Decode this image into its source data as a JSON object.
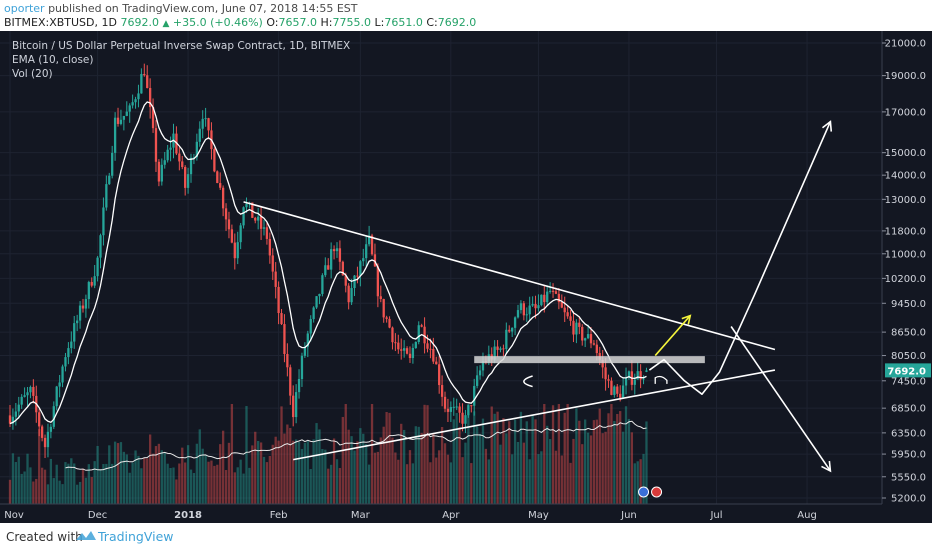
{
  "header": {
    "username": "oporter",
    "published_text": " published on TradingView.com, June 07, 2018 14:55 EST",
    "symbol": "BITMEX:XBTUSD, 1D",
    "last": "7692.0",
    "change": "+35.0 (+0.46%)",
    "o_label": "O:",
    "o": "7657.0",
    "h_label": "H:",
    "h": "7755.0",
    "l_label": "L:",
    "l": "7651.0",
    "c_label": "C:",
    "c": "7692.0"
  },
  "legend": {
    "title": "Bitcoin / US Dollar Perpetual Inverse Swap Contract, 1D, BITMEX",
    "ema": "EMA (10, close)",
    "vol": "Vol (20)"
  },
  "footer": {
    "created_with": "Created with",
    "brand": "TradingView"
  },
  "colors": {
    "bg": "#131722",
    "up": "#26a69a",
    "down": "#ef5350",
    "ema": "#ffffff",
    "annotation": "#ffffff",
    "arrow_yellow": "#f5f53c",
    "price_tag": "#26a69a",
    "band": "#d6d6d6"
  },
  "chart_data": {
    "type": "candlestick",
    "y_scale": "log",
    "price_axis_ticks": [
      "21000.0",
      "19000.0",
      "17000.0",
      "15000.0",
      "14000.0",
      "13000.0",
      "11800.0",
      "11000.0",
      "10200.0",
      "9450.0",
      "8650.0",
      "8050.0",
      "7450.0",
      "6850.0",
      "6350.0",
      "5950.0",
      "5550.0",
      "5200.0"
    ],
    "time_axis_labels": [
      "Nov",
      "Dec",
      "2018",
      "Feb",
      "Mar",
      "Apr",
      "May",
      "Jun",
      "Jul",
      "Aug"
    ],
    "current_price_label": "7692.0",
    "price_anchors": [
      [
        "2017-11-01",
        6700
      ],
      [
        "2017-11-08",
        7200
      ],
      [
        "2017-11-13",
        6100
      ],
      [
        "2017-11-20",
        8100
      ],
      [
        "2017-11-28",
        9900
      ],
      [
        "2017-12-01",
        10800
      ],
      [
        "2017-12-07",
        16500
      ],
      [
        "2017-12-12",
        17000
      ],
      [
        "2017-12-17",
        19400
      ],
      [
        "2017-12-22",
        13800
      ],
      [
        "2017-12-27",
        15800
      ],
      [
        "2017-12-31",
        13500
      ],
      [
        "2018-01-06",
        17000
      ],
      [
        "2018-01-10",
        14500
      ],
      [
        "2018-01-17",
        11000
      ],
      [
        "2018-01-20",
        12900
      ],
      [
        "2018-01-28",
        11600
      ],
      [
        "2018-02-01",
        9200
      ],
      [
        "2018-02-06",
        6800
      ],
      [
        "2018-02-10",
        8300
      ],
      [
        "2018-02-16",
        10100
      ],
      [
        "2018-02-20",
        11300
      ],
      [
        "2018-02-25",
        9600
      ],
      [
        "2018-03-04",
        11400
      ],
      [
        "2018-03-08",
        9400
      ],
      [
        "2018-03-14",
        8200
      ],
      [
        "2018-03-18",
        7900
      ],
      [
        "2018-03-21",
        8900
      ],
      [
        "2018-03-26",
        8100
      ],
      [
        "2018-03-30",
        6900
      ],
      [
        "2018-04-06",
        6600
      ],
      [
        "2018-04-12",
        7900
      ],
      [
        "2018-04-18",
        8200
      ],
      [
        "2018-04-24",
        9300
      ],
      [
        "2018-04-30",
        9250
      ],
      [
        "2018-05-05",
        9800
      ],
      [
        "2018-05-10",
        9100
      ],
      [
        "2018-05-15",
        8600
      ],
      [
        "2018-05-20",
        8400
      ],
      [
        "2018-05-24",
        7500
      ],
      [
        "2018-05-28",
        7100
      ],
      [
        "2018-06-01",
        7500
      ],
      [
        "2018-06-07",
        7692
      ]
    ],
    "volume_note": "daily volume histogram at bottom with Vol(20) moving average",
    "annotations": [
      {
        "kind": "trendline",
        "label": "descending resistance",
        "from": [
          "2018-01-20",
          12900
        ],
        "to": [
          "2018-07-21",
          8200
        ]
      },
      {
        "kind": "trendline",
        "label": "ascending support",
        "from": [
          "2018-02-06",
          5850
        ],
        "to": [
          "2018-07-21",
          7700
        ]
      },
      {
        "kind": "horizontal_band",
        "label": "resistance zone",
        "price": 7950,
        "from": "2018-04-09",
        "to": "2018-06-27"
      },
      {
        "kind": "arrow",
        "color": "yellow",
        "from": [
          "2018-06-10",
          8050
        ],
        "to": [
          "2018-06-22",
          9100
        ]
      },
      {
        "kind": "path",
        "label": "projected path",
        "points": [
          [
            "2018-06-08",
            7700
          ],
          [
            "2018-06-13",
            7950
          ],
          [
            "2018-06-20",
            7450
          ],
          [
            "2018-06-26",
            7150
          ],
          [
            "2018-07-02",
            7650
          ],
          [
            "2018-07-14",
            9700
          ],
          [
            "2018-08-09",
            16500
          ]
        ]
      },
      {
        "kind": "path",
        "label": "breakdown projection",
        "points": [
          [
            "2018-07-06",
            8800
          ],
          [
            "2018-08-09",
            5650
          ]
        ]
      }
    ]
  }
}
